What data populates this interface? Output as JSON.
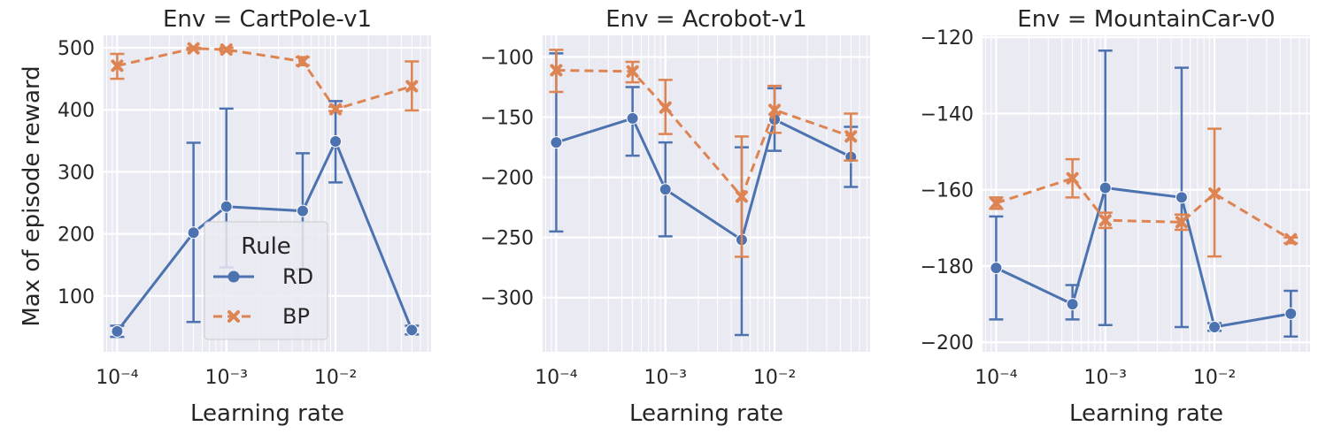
{
  "figure": {
    "ylabel": "Max of episode reward",
    "legend": {
      "title": "Rule",
      "placement": "lower-center of first panel"
    }
  },
  "colors": {
    "RD": "#4c72b0",
    "BP": "#dd8452",
    "axes_bg": "#eaeaf2",
    "grid": "#ffffff",
    "text": "#262626"
  },
  "chart_data": [
    {
      "type": "line",
      "title": "Env = CartPole-v1",
      "xlabel": "Learning rate",
      "ylabel": "Max of episode reward",
      "xscale": "log",
      "xlim": [
        7.5e-05,
        0.075
      ],
      "ylim": [
        10,
        520
      ],
      "yticks": [
        100,
        200,
        300,
        400,
        500
      ],
      "xticks": [
        0.0001,
        0.001,
        0.01
      ],
      "xticklabels": [
        "10⁻⁴",
        "10⁻³",
        "10⁻²"
      ],
      "grid": true,
      "x": [
        0.0001,
        0.0005,
        0.001,
        0.005,
        0.01,
        0.05
      ],
      "series": [
        {
          "name": "RD",
          "style": "solid",
          "marker": "circle",
          "values": [
            43,
            202,
            244,
            237,
            349,
            45
          ],
          "err_low": [
            34,
            58,
            146,
            143,
            283,
            38
          ],
          "err_high": [
            52,
            347,
            402,
            330,
            414,
            52
          ]
        },
        {
          "name": "BP",
          "style": "dashed",
          "marker": "x",
          "values": [
            471,
            499,
            497,
            478,
            401,
            438
          ],
          "err_low": [
            450,
            498,
            494,
            472,
            398,
            399
          ],
          "err_high": [
            490,
            500,
            500,
            485,
            405,
            478
          ]
        }
      ],
      "legend": true
    },
    {
      "type": "line",
      "title": "Env = Acrobot-v1",
      "xlabel": "Learning rate",
      "ylabel": "",
      "xscale": "log",
      "xlim": [
        7.5e-05,
        0.075
      ],
      "ylim": [
        -345,
        -82
      ],
      "yticks": [
        -300,
        -250,
        -200,
        -150,
        -100
      ],
      "yticklabels": [
        "−300",
        "−250",
        "−200",
        "−150",
        "−100"
      ],
      "xticks": [
        0.0001,
        0.001,
        0.01
      ],
      "xticklabels": [
        "10⁻⁴",
        "10⁻³",
        "10⁻²"
      ],
      "grid": true,
      "x": [
        0.0001,
        0.0005,
        0.001,
        0.005,
        0.01,
        0.05
      ],
      "series": [
        {
          "name": "RD",
          "style": "solid",
          "marker": "circle",
          "values": [
            -171,
            -151,
            -210,
            -252,
            -152,
            -183
          ],
          "err_low": [
            -245,
            -182,
            -249,
            -331,
            -178,
            -208
          ],
          "err_high": [
            -97,
            -125,
            -171,
            -175,
            -126,
            -158
          ]
        },
        {
          "name": "BP",
          "style": "dashed",
          "marker": "x",
          "values": [
            -111,
            -112,
            -142,
            -216,
            -144,
            -166
          ],
          "err_low": [
            -129,
            -121,
            -164,
            -266,
            -163,
            -186
          ],
          "err_high": [
            -94,
            -104,
            -119,
            -166,
            -124,
            -147
          ]
        }
      ],
      "legend": false
    },
    {
      "type": "line",
      "title": "Env = MountainCar-v0",
      "xlabel": "Learning rate",
      "ylabel": "",
      "xscale": "log",
      "xlim": [
        7.5e-05,
        0.075
      ],
      "ylim": [
        -202.5,
        -119.5
      ],
      "yticks": [
        -200,
        -180,
        -160,
        -140,
        -120
      ],
      "yticklabels": [
        "−200",
        "−180",
        "−160",
        "−140",
        "−120"
      ],
      "xticks": [
        0.0001,
        0.001,
        0.01
      ],
      "xticklabels": [
        "10⁻⁴",
        "10⁻³",
        "10⁻²"
      ],
      "grid": true,
      "x": [
        0.0001,
        0.0005,
        0.001,
        0.005,
        0.01,
        0.05
      ],
      "series": [
        {
          "name": "RD",
          "style": "solid",
          "marker": "circle",
          "values": [
            -180.5,
            -190,
            -159.5,
            -162,
            -196,
            -192.5
          ],
          "err_low": [
            -194,
            -194,
            -195.5,
            -196,
            -197,
            -198.5
          ],
          "err_high": [
            -167,
            -185,
            -123.5,
            -128,
            -195,
            -186.5
          ]
        },
        {
          "name": "BP",
          "style": "dashed",
          "marker": "x",
          "values": [
            -163.5,
            -157,
            -168,
            -168.5,
            -161,
            -173
          ],
          "err_low": [
            -165,
            -162,
            -170,
            -170.5,
            -177.5,
            -174
          ],
          "err_high": [
            -162,
            -152,
            -166,
            -166.5,
            -144,
            -172.5
          ]
        }
      ],
      "legend": false
    }
  ]
}
